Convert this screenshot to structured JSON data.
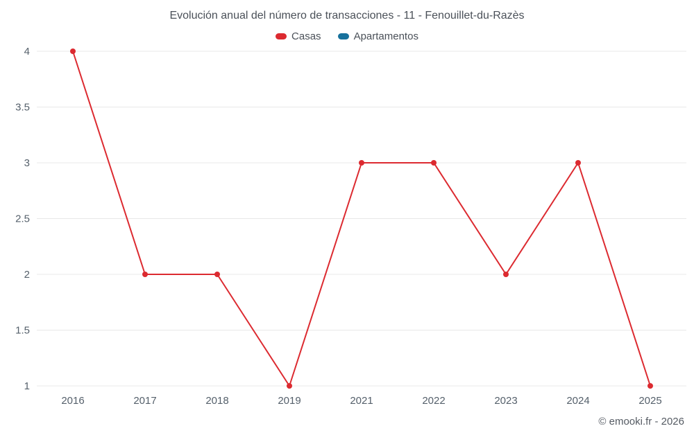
{
  "title": "Evolución anual del número de transacciones - 11 - Fenouillet-du-Razès",
  "legend": [
    {
      "label": "Casas",
      "color": "#dc2a30"
    },
    {
      "label": "Apartamentos",
      "color": "#17719c"
    }
  ],
  "footer": "© emooki.fr - 2026",
  "colors": {
    "grid": "#e8e8e8",
    "axis_text": "#55606b",
    "background": "#ffffff"
  },
  "chart_data": {
    "type": "line",
    "title": "Evolución anual del número de transacciones - 11 - Fenouillet-du-Razès",
    "categories": [
      "2016",
      "2017",
      "2018",
      "2019",
      "2021",
      "2022",
      "2023",
      "2024",
      "2025"
    ],
    "series": [
      {
        "name": "Casas",
        "color": "#dc2a30",
        "values": [
          4,
          2,
          2,
          1,
          3,
          3,
          2,
          3,
          1
        ]
      },
      {
        "name": "Apartamentos",
        "color": "#17719c",
        "values": []
      }
    ],
    "xlabel": "",
    "ylabel": "",
    "ylim": [
      1,
      4
    ],
    "yticks": [
      1,
      1.5,
      2,
      2.5,
      3,
      3.5,
      4
    ],
    "grid": true,
    "legend_position": "top"
  }
}
